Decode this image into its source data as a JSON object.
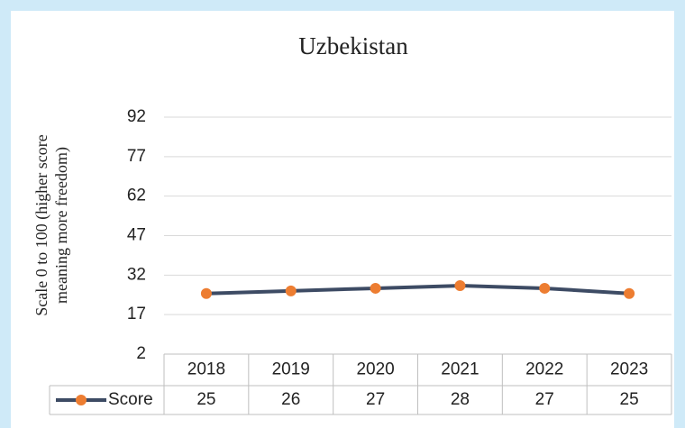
{
  "chart_data": {
    "type": "line",
    "title": "Uzbekistan",
    "ylabel": [
      "Scale 0 to 100 (higher score",
      "meaning more freedom)"
    ],
    "categories": [
      "2018",
      "2019",
      "2020",
      "2021",
      "2022",
      "2023"
    ],
    "series": [
      {
        "name": "Score",
        "color": "#3d4b64",
        "marker_color": "#ed7d31",
        "values": [
          25,
          26,
          27,
          28,
          27,
          25
        ]
      }
    ],
    "ylim": [
      2,
      92
    ],
    "yticks": [
      2,
      17,
      32,
      47,
      62,
      77,
      92
    ],
    "grid": true,
    "data_table": true
  }
}
